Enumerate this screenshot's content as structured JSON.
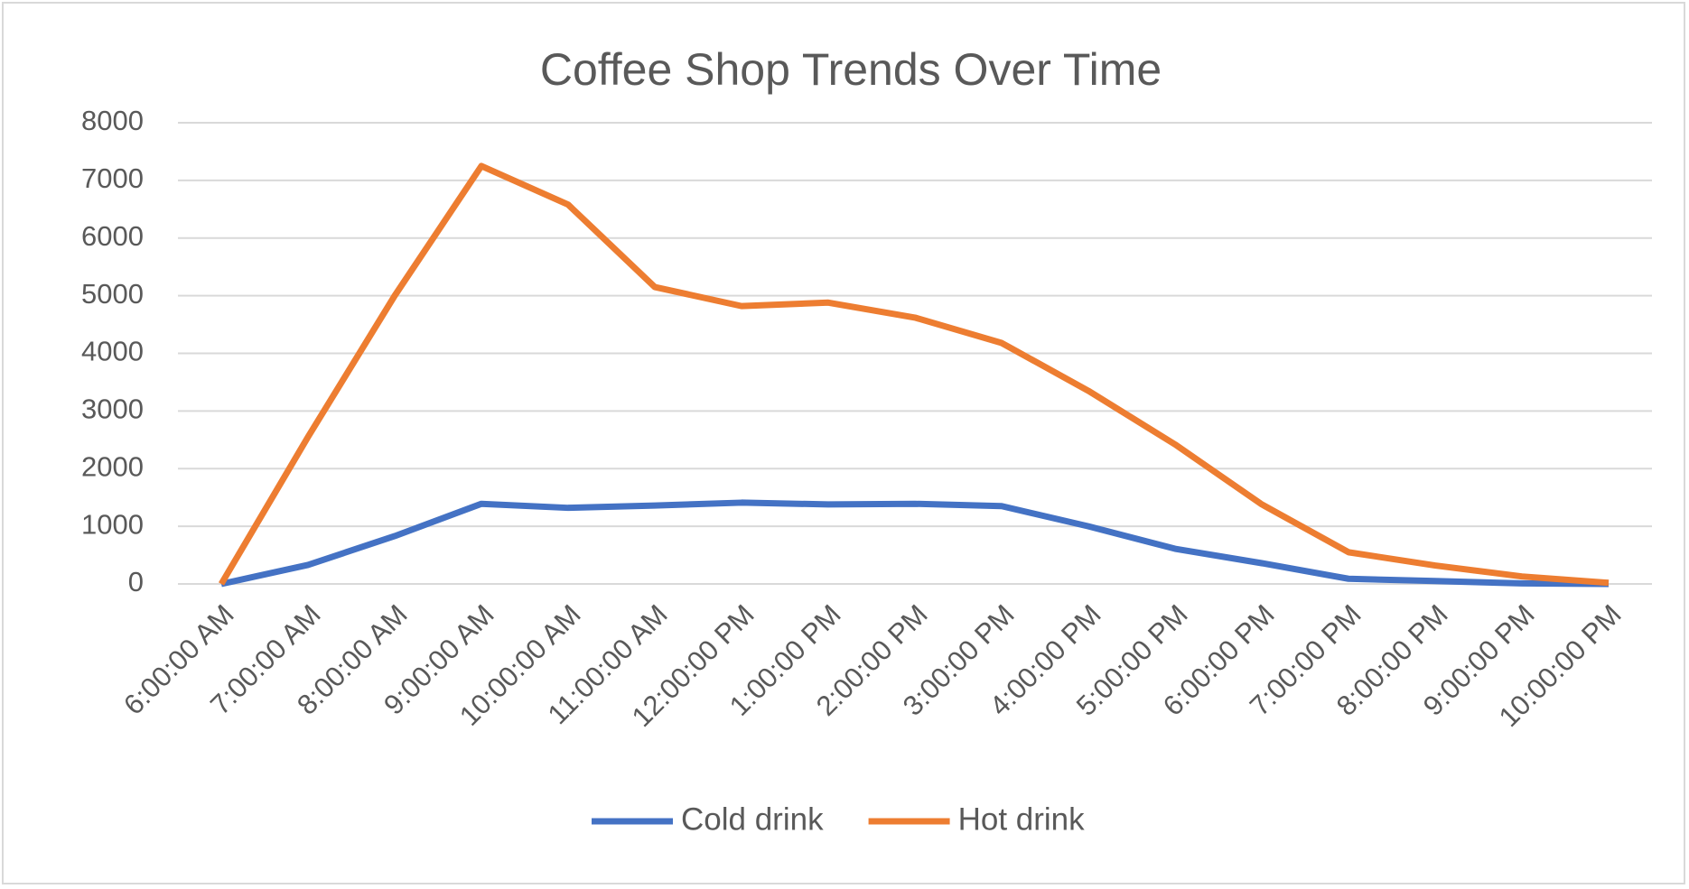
{
  "chart_data": {
    "type": "line",
    "title": "Coffee Shop Trends Over Time",
    "categories": [
      "6:00:00 AM",
      "7:00:00 AM",
      "8:00:00 AM",
      "9:00:00 AM",
      "10:00:00 AM",
      "11:00:00 AM",
      "12:00:00 PM",
      "1:00:00 PM",
      "2:00:00 PM",
      "3:00:00 PM",
      "4:00:00 PM",
      "5:00:00 PM",
      "6:00:00 PM",
      "7:00:00 PM",
      "8:00:00 PM",
      "9:00:00 PM",
      "10:00:00 PM"
    ],
    "series": [
      {
        "name": "Cold drink",
        "color": "#4472c4",
        "values": [
          0,
          330,
          830,
          1390,
          1320,
          1360,
          1410,
          1380,
          1390,
          1350,
          1000,
          610,
          360,
          90,
          50,
          10,
          0
        ]
      },
      {
        "name": "Hot drink",
        "color": "#ed7d31",
        "values": [
          0,
          2550,
          5000,
          7250,
          6580,
          5150,
          4820,
          4880,
          4620,
          4180,
          3350,
          2420,
          1380,
          550,
          320,
          130,
          20
        ]
      }
    ],
    "ylim": [
      0,
      8000
    ],
    "yticks": [
      0,
      1000,
      2000,
      3000,
      4000,
      5000,
      6000,
      7000,
      8000
    ],
    "grid": true,
    "legend": "bottom"
  }
}
